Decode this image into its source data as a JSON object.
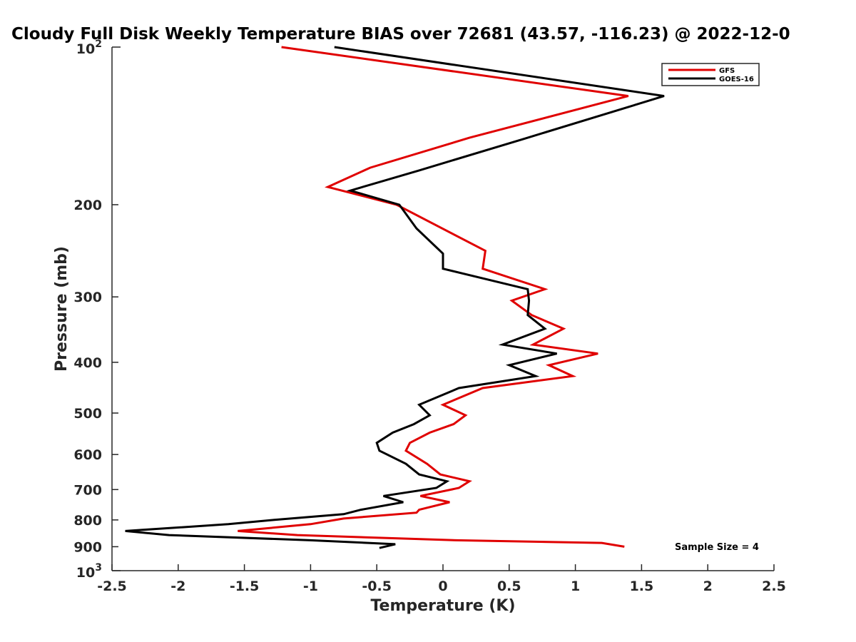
{
  "chart_data": {
    "type": "line",
    "title": "Cloudy Full Disk Weekly Temperature BIAS over 72681 (43.57, -116.23) @ 2022-12-0",
    "xlabel": "Temperature (K)",
    "ylabel": "Pressure (mb)",
    "xlim": [
      -2.5,
      2.5
    ],
    "ylim": [
      100,
      1000
    ],
    "y_scale": "log",
    "y_direction": "reversed",
    "grid": false,
    "legend_position": "top-right",
    "x_ticks": [
      -2.5,
      -2,
      -1.5,
      -1,
      -0.5,
      0,
      0.5,
      1,
      1.5,
      2,
      2.5
    ],
    "x_tick_labels": [
      "-2.5",
      "-2",
      "-1.5",
      "-1",
      "-0.5",
      "0",
      "0.5",
      "1",
      "1.5",
      "2",
      "2.5"
    ],
    "y_ticks": [
      200,
      300,
      400,
      500,
      600,
      700,
      800,
      900
    ],
    "y_tick_labels": [
      "200",
      "300",
      "400",
      "500",
      "600",
      "700",
      "800",
      "900"
    ],
    "y_top_label": {
      "base": "10",
      "exp": "2"
    },
    "y_bottom_label": {
      "base": "10",
      "exp": "3"
    },
    "annotation": "Sample Size = 4",
    "series": [
      {
        "name": "GFS",
        "color": "#e00000",
        "points": [
          [
            -1.22,
            100
          ],
          [
            1.4,
            124
          ],
          [
            0.2,
            149
          ],
          [
            -0.55,
            170
          ],
          [
            -0.87,
            185
          ],
          [
            -0.35,
            200
          ],
          [
            0.32,
            245
          ],
          [
            0.3,
            265
          ],
          [
            0.77,
            290
          ],
          [
            0.52,
            305
          ],
          [
            0.67,
            325
          ],
          [
            0.91,
            345
          ],
          [
            0.68,
            370
          ],
          [
            1.17,
            385
          ],
          [
            0.8,
            405
          ],
          [
            0.98,
            425
          ],
          [
            0.3,
            448
          ],
          [
            0.0,
            482
          ],
          [
            0.17,
            505
          ],
          [
            0.08,
            525
          ],
          [
            -0.1,
            545
          ],
          [
            -0.25,
            570
          ],
          [
            -0.28,
            590
          ],
          [
            -0.12,
            625
          ],
          [
            -0.02,
            655
          ],
          [
            0.2,
            675
          ],
          [
            0.12,
            695
          ],
          [
            -0.17,
            720
          ],
          [
            0.05,
            740
          ],
          [
            -0.18,
            765
          ],
          [
            -0.2,
            775
          ],
          [
            -0.75,
            795
          ],
          [
            -1.0,
            815
          ],
          [
            -1.55,
            840
          ],
          [
            -1.1,
            855
          ],
          [
            0.1,
            875
          ],
          [
            1.2,
            885
          ],
          [
            1.37,
            900
          ]
        ]
      },
      {
        "name": "GOES-16",
        "color": "#000000",
        "points": [
          [
            -0.82,
            100
          ],
          [
            1.67,
            124
          ],
          [
            0.6,
            150
          ],
          [
            -0.18,
            172
          ],
          [
            -0.7,
            188
          ],
          [
            -0.33,
            200
          ],
          [
            -0.2,
            222
          ],
          [
            0.0,
            248
          ],
          [
            0.0,
            265
          ],
          [
            0.64,
            290
          ],
          [
            0.65,
            305
          ],
          [
            0.64,
            325
          ],
          [
            0.77,
            345
          ],
          [
            0.45,
            370
          ],
          [
            0.86,
            385
          ],
          [
            0.5,
            405
          ],
          [
            0.7,
            425
          ],
          [
            0.12,
            448
          ],
          [
            -0.18,
            482
          ],
          [
            -0.1,
            505
          ],
          [
            -0.22,
            525
          ],
          [
            -0.38,
            545
          ],
          [
            -0.5,
            570
          ],
          [
            -0.48,
            590
          ],
          [
            -0.28,
            625
          ],
          [
            -0.18,
            655
          ],
          [
            0.03,
            675
          ],
          [
            -0.05,
            695
          ],
          [
            -0.45,
            720
          ],
          [
            -0.3,
            740
          ],
          [
            -0.62,
            765
          ],
          [
            -0.75,
            780
          ],
          [
            -1.28,
            800
          ],
          [
            -1.62,
            815
          ],
          [
            -2.4,
            840
          ],
          [
            -2.07,
            855
          ],
          [
            -1.0,
            875
          ],
          [
            -0.36,
            890
          ],
          [
            -0.48,
            905
          ]
        ]
      }
    ]
  }
}
